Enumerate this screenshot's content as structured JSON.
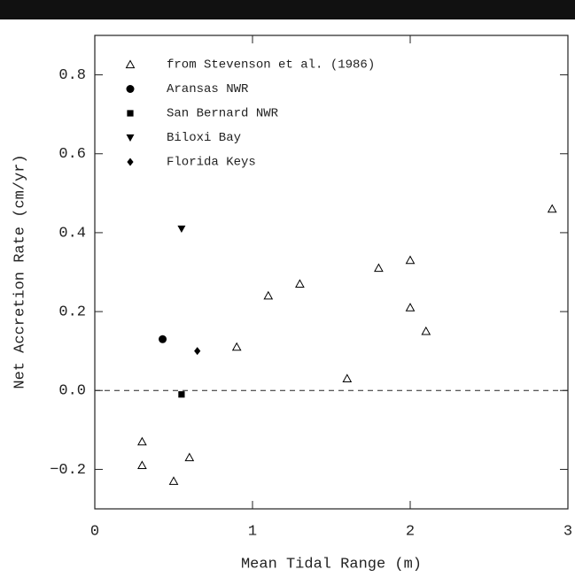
{
  "chart_data": {
    "type": "scatter",
    "xlabel": "Mean Tidal Range (m)",
    "ylabel": "Net Accretion Rate (cm/yr)",
    "xlim": [
      0,
      3
    ],
    "ylim": [
      -0.3,
      0.9
    ],
    "xticks": [
      0,
      1,
      2,
      3
    ],
    "yticks": [
      {
        "value": -0.2,
        "label": "−0.2"
      },
      {
        "value": 0,
        "label": "0.0"
      },
      0.2,
      0.4,
      0.6,
      0.8
    ],
    "zero_line": true,
    "legend": "upper left",
    "series": [
      {
        "name": "from Stevenson et al. (1986)",
        "marker": "triangle-open",
        "color": "#000000",
        "x": [
          0.3,
          0.3,
          0.5,
          0.6,
          0.9,
          1.1,
          1.3,
          1.6,
          1.8,
          2.0,
          2.0,
          2.1,
          2.9
        ],
        "y": [
          -0.13,
          -0.19,
          -0.23,
          -0.17,
          0.11,
          0.24,
          0.27,
          0.03,
          0.31,
          0.33,
          0.21,
          0.15,
          0.46
        ]
      },
      {
        "name": "Aransas NWR",
        "marker": "circle",
        "color": "#000000",
        "x": [
          0.43
        ],
        "y": [
          0.13
        ]
      },
      {
        "name": "San Bernard NWR",
        "marker": "square",
        "color": "#000000",
        "x": [
          0.55
        ],
        "y": [
          -0.01
        ]
      },
      {
        "name": "Biloxi Bay",
        "marker": "triangle-down",
        "color": "#000000",
        "x": [
          0.55
        ],
        "y": [
          0.41
        ]
      },
      {
        "name": "Florida Keys",
        "marker": "diamond",
        "color": "#000000",
        "x": [
          0.65
        ],
        "y": [
          0.1
        ]
      }
    ]
  }
}
